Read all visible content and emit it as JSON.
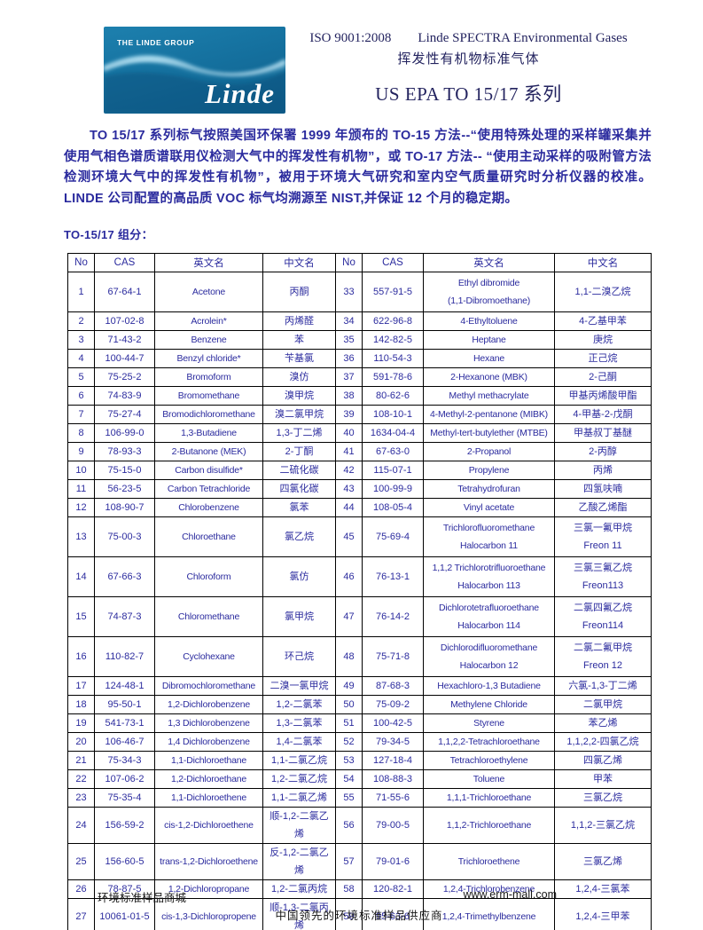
{
  "colors": {
    "logo_blue": "#15719f",
    "logo_wave_highlight": "#9fdcf2",
    "body_text_blue": "#2b2b9e",
    "heading_navy": "#23235f",
    "table_border": "#000000"
  },
  "header": {
    "logo_group": "THE LINDE GROUP",
    "logo_brand": "Linde",
    "iso_text": "ISO 9001:2008",
    "product_text": "Linde SPECTRA Environmental Gases",
    "subtitle_cn": "挥发性有机物标准气体",
    "title": "US EPA TO 15/17 系列"
  },
  "intro": {
    "paragraph": "TO 15/17 系列标气按照美国环保署 1999 年颁布的 TO-15 方法--“使用特殊处理的采样罐采集并使用气相色谱质谱联用仪检测大气中的挥发性有机物”，或 TO-17 方法-- “使用主动采样的吸附管方法检测环境大气中的挥发性有机物”，被用于环境大气研究和室内空气质量研究时分析仪器的校准。LINDE 公司配置的高品质 VOC 标气均溯源至 NIST,并保证 12 个月的稳定期。",
    "section_label": "TO-15/17 组分："
  },
  "table": {
    "headers": [
      "No",
      "CAS",
      "英文名",
      "中文名",
      "No",
      "CAS",
      "英文名",
      "中文名"
    ],
    "rows": [
      [
        "1",
        "67-64-1",
        "Acetone",
        "丙酮",
        "33",
        "557-91-5",
        "Ethyl dibromide\n(1,1-Dibromoethane)",
        "1,1-二溴乙烷"
      ],
      [
        "2",
        "107-02-8",
        "Acrolein*",
        "丙烯醛",
        "34",
        "622-96-8",
        "4-Ethyltoluene",
        "4-乙基甲苯"
      ],
      [
        "3",
        "71-43-2",
        "Benzene",
        "苯",
        "35",
        "142-82-5",
        "Heptane",
        "庚烷"
      ],
      [
        "4",
        "100-44-7",
        "Benzyl chloride*",
        "苄基氯",
        "36",
        "110-54-3",
        "Hexane",
        "正己烷"
      ],
      [
        "5",
        "75-25-2",
        "Bromoform",
        "溴仿",
        "37",
        "591-78-6",
        "2-Hexanone (MBK)",
        "2-己酮"
      ],
      [
        "6",
        "74-83-9",
        "Bromomethane",
        "溴甲烷",
        "38",
        "80-62-6",
        "Methyl methacrylate",
        "甲基丙烯酸甲酯"
      ],
      [
        "7",
        "75-27-4",
        "Bromodichloromethane",
        "溴二氯甲烷",
        "39",
        "108-10-1",
        "4-Methyl-2-pentanone (MIBK)",
        "4-甲基-2-戊酮"
      ],
      [
        "8",
        "106-99-0",
        "1,3-Butadiene",
        "1,3-丁二烯",
        "40",
        "1634-04-4",
        "Methyl-tert-butylether (MTBE)",
        "甲基叔丁基醚"
      ],
      [
        "9",
        "78-93-3",
        "2-Butanone (MEK)",
        "2-丁酮",
        "41",
        "67-63-0",
        "2-Propanol",
        "2-丙醇"
      ],
      [
        "10",
        "75-15-0",
        "Carbon disulfide*",
        "二硫化碳",
        "42",
        "115-07-1",
        "Propylene",
        "丙烯"
      ],
      [
        "11",
        "56-23-5",
        "Carbon Tetrachloride",
        "四氯化碳",
        "43",
        "100-99-9",
        "Tetrahydrofuran",
        "四氢呋喃"
      ],
      [
        "12",
        "108-90-7",
        "Chlorobenzene",
        "氯苯",
        "44",
        "108-05-4",
        "Vinyl acetate",
        "乙酸乙烯酯"
      ],
      [
        "13",
        "75-00-3",
        "Chloroethane",
        "氯乙烷",
        "45",
        "75-69-4",
        "Trichlorofluoromethane\nHalocarbon 11",
        "三氯一氟甲烷\nFreon 11"
      ],
      [
        "14",
        "67-66-3",
        "Chloroform",
        "氯仿",
        "46",
        "76-13-1",
        "1,1,2 Trichlorotrifluoroethane\nHalocarbon 113",
        "三氯三氟乙烷\nFreon113"
      ],
      [
        "15",
        "74-87-3",
        "Chloromethane",
        "氯甲烷",
        "47",
        "76-14-2",
        "Dichlorotetrafluoroethane\nHalocarbon 114",
        "二氯四氟乙烷\nFreon114"
      ],
      [
        "16",
        "110-82-7",
        "Cyclohexane",
        "环己烷",
        "48",
        "75-71-8",
        "Dichlorodifluoromethane\nHalocarbon 12",
        "二氯二氟甲烷\nFreon 12"
      ],
      [
        "17",
        "124-48-1",
        "Dibromochloromethane",
        "二溴一氯甲烷",
        "49",
        "87-68-3",
        "Hexachloro-1,3 Butadiene",
        "六氯-1,3-丁二烯"
      ],
      [
        "18",
        "95-50-1",
        "1,2-Dichlorobenzene",
        "1,2-二氯苯",
        "50",
        "75-09-2",
        "Methylene Chloride",
        "二氯甲烷"
      ],
      [
        "19",
        "541-73-1",
        "1,3 Dichlorobenzene",
        "1,3-二氯苯",
        "51",
        "100-42-5",
        "Styrene",
        "苯乙烯"
      ],
      [
        "20",
        "106-46-7",
        "1,4 Dichlorobenzene",
        "1,4-二氯苯",
        "52",
        "79-34-5",
        "1,1,2,2-Tetrachloroethane",
        "1,1,2,2-四氯乙烷"
      ],
      [
        "21",
        "75-34-3",
        "1,1-Dichloroethane",
        "1,1-二氯乙烷",
        "53",
        "127-18-4",
        "Tetrachloroethylene",
        "四氯乙烯"
      ],
      [
        "22",
        "107-06-2",
        "1,2-Dichloroethane",
        "1,2-二氯乙烷",
        "54",
        "108-88-3",
        "Toluene",
        "甲苯"
      ],
      [
        "23",
        "75-35-4",
        "1,1-Dichloroethene",
        "1,1-二氯乙烯",
        "55",
        "71-55-6",
        "1,1,1-Trichloroethane",
        "三氯乙烷"
      ],
      [
        "24",
        "156-59-2",
        "cis-1,2-Dichloroethene",
        "顺-1,2-二氯乙烯",
        "56",
        "79-00-5",
        "1,1,2-Trichloroethane",
        "1,1,2-三氯乙烷"
      ],
      [
        "25",
        "156-60-5",
        "trans-1,2-Dichloroethene",
        "反-1,2-二氯乙烯",
        "57",
        "79-01-6",
        "Trichloroethene",
        "三氯乙烯"
      ],
      [
        "26",
        "78-87-5",
        "1,2-Dichloropropane",
        "1,2-二氯丙烷",
        "58",
        "120-82-1",
        "1,2,4-Trichlorobenzene",
        "1,2,4-三氯苯"
      ],
      [
        "27",
        "10061-01-5",
        "cis-1,3-Dichloropropene",
        "顺-1,3-二氯丙烯",
        "59",
        "95-63-6",
        "1,2,4-Trimethylbenzene",
        "1,2,4-三甲苯"
      ]
    ]
  },
  "footer": {
    "left": "环境标准样品商城",
    "right": "www.erm-mall.com",
    "center": "中国领先的环境标准样品供应商"
  }
}
